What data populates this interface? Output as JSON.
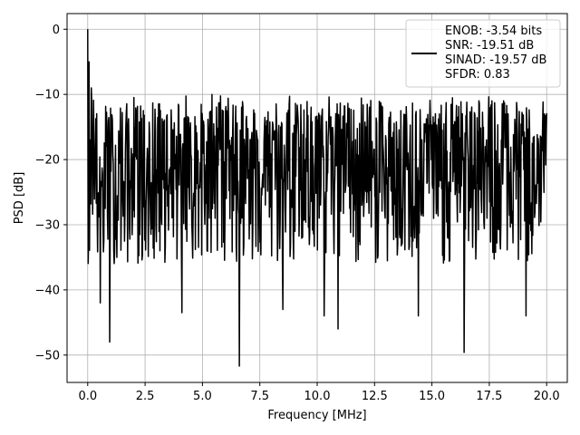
{
  "chart_data": {
    "type": "line",
    "xlabel": "Frequency [MHz]",
    "ylabel": "PSD [dB]",
    "xlim": [
      -0.9,
      20.9
    ],
    "ylim": [
      -54.2,
      2.4
    ],
    "xticks": [
      0,
      2.5,
      5,
      7.5,
      10,
      12.5,
      15,
      17.5,
      20
    ],
    "xtick_labels": [
      "0.0",
      "2.5",
      "5.0",
      "7.5",
      "10.0",
      "12.5",
      "15.0",
      "17.5",
      "20.0"
    ],
    "yticks": [
      0,
      -10,
      -20,
      -30,
      -40,
      -50
    ],
    "ytick_labels": [
      "0",
      "−10",
      "−20",
      "−30",
      "−40",
      "−50"
    ],
    "grid": true,
    "legend_position": "top-right",
    "series": [
      {
        "name": "ENOB: -3.54 bits\nSNR: -19.51 dB\nSINAD: -19.57 dB\nSFDR: 0.83",
        "legend_lines": [
          "ENOB: -3.54 bits",
          "SNR: -19.51 dB",
          "SINAD: -19.57 dB",
          "SFDR: 0.83"
        ],
        "color": "#000000",
        "x_range": [
          0,
          20
        ],
        "points": 1024,
        "baseline_mean_db": -21,
        "envelope_max_db": -10,
        "peaks": [
          {
            "x": 0.0,
            "y": 0
          },
          {
            "x": 0.05,
            "y": -5
          },
          {
            "x": 0.1,
            "y": -17
          },
          {
            "x": 0.15,
            "y": -9
          }
        ],
        "dips": [
          {
            "x": 0.55,
            "y": -42
          },
          {
            "x": 0.95,
            "y": -48
          },
          {
            "x": 4.1,
            "y": -43.5
          },
          {
            "x": 6.6,
            "y": -51.7
          },
          {
            "x": 8.5,
            "y": -43
          },
          {
            "x": 10.3,
            "y": -44
          },
          {
            "x": 10.9,
            "y": -46
          },
          {
            "x": 14.4,
            "y": -44
          },
          {
            "x": 16.4,
            "y": -49.6
          },
          {
            "x": 19.1,
            "y": -44
          }
        ]
      }
    ]
  }
}
